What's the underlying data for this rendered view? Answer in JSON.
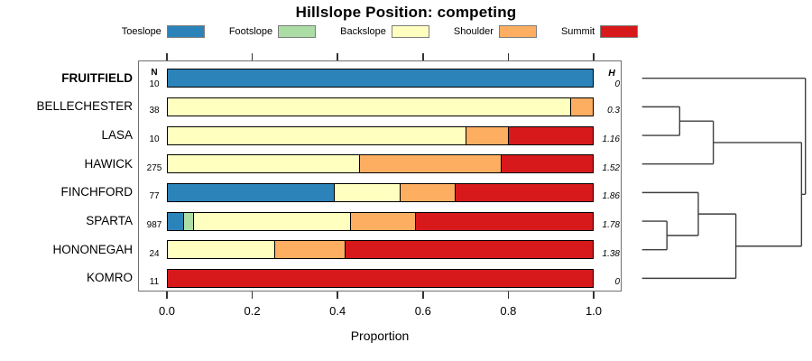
{
  "title": "Hillslope Position: competing",
  "headers": {
    "n": "N",
    "h": "H"
  },
  "axis": {
    "xlabel": "Proportion",
    "tick_labels": [
      "0.0",
      "0.2",
      "0.4",
      "0.6",
      "0.8",
      "1.0"
    ],
    "tick_values": [
      0,
      0.2,
      0.4,
      0.6,
      0.8,
      1.0
    ]
  },
  "chart_data": {
    "type": "bar",
    "subtype": "horizontal-stacked-proportion-with-dendrogram",
    "title": "Hillslope Position: competing",
    "xlabel": "Proportion",
    "xlim": [
      0,
      1
    ],
    "grid": false,
    "legend_position": "top",
    "categories": [
      "Toeslope",
      "Footslope",
      "Backslope",
      "Shoulder",
      "Summit"
    ],
    "palette": {
      "Toeslope": "#2B83BA",
      "Footslope": "#ABDDA4",
      "Backslope": "#FFFFBF",
      "Shoulder": "#FDAE61",
      "Summit": "#D7191C"
    },
    "rows": [
      {
        "name": "FRUITFIELD",
        "bold": true,
        "n": 10,
        "h": "0",
        "segments": [
          {
            "cat": "Toeslope",
            "p": 1.0
          }
        ]
      },
      {
        "name": "BELLECHESTER",
        "bold": false,
        "n": 38,
        "h": "0.3",
        "segments": [
          {
            "cat": "Backslope",
            "p": 0.947
          },
          {
            "cat": "Shoulder",
            "p": 0.053
          }
        ]
      },
      {
        "name": "LASA",
        "bold": false,
        "n": 10,
        "h": "1.16",
        "segments": [
          {
            "cat": "Backslope",
            "p": 0.7
          },
          {
            "cat": "Shoulder",
            "p": 0.1
          },
          {
            "cat": "Summit",
            "p": 0.2
          }
        ]
      },
      {
        "name": "HAWICK",
        "bold": false,
        "n": 275,
        "h": "1.52",
        "segments": [
          {
            "cat": "Backslope",
            "p": 0.45
          },
          {
            "cat": "Shoulder",
            "p": 0.334
          },
          {
            "cat": "Summit",
            "p": 0.216
          }
        ]
      },
      {
        "name": "FINCHFORD",
        "bold": false,
        "n": 77,
        "h": "1.86",
        "segments": [
          {
            "cat": "Toeslope",
            "p": 0.39
          },
          {
            "cat": "Backslope",
            "p": 0.156
          },
          {
            "cat": "Shoulder",
            "p": 0.13
          },
          {
            "cat": "Summit",
            "p": 0.324
          }
        ]
      },
      {
        "name": "SPARTA",
        "bold": false,
        "n": 987,
        "h": "1.78",
        "segments": [
          {
            "cat": "Toeslope",
            "p": 0.037
          },
          {
            "cat": "Footslope",
            "p": 0.022
          },
          {
            "cat": "Backslope",
            "p": 0.37
          },
          {
            "cat": "Shoulder",
            "p": 0.152
          },
          {
            "cat": "Summit",
            "p": 0.419
          }
        ]
      },
      {
        "name": "HONONEGAH",
        "bold": false,
        "n": 24,
        "h": "1.38",
        "segments": [
          {
            "cat": "Backslope",
            "p": 0.25
          },
          {
            "cat": "Shoulder",
            "p": 0.167
          },
          {
            "cat": "Summit",
            "p": 0.583
          }
        ]
      },
      {
        "name": "KOMRO",
        "bold": false,
        "n": 11,
        "h": "0",
        "segments": [
          {
            "cat": "Summit",
            "p": 1.0
          }
        ]
      }
    ],
    "dendrogram": {
      "leaf_order": [
        "FRUITFIELD",
        "BELLECHESTER",
        "LASA",
        "HAWICK",
        "FINCHFORD",
        "SPARTA",
        "HONONEGAH",
        "KOMRO"
      ],
      "merges": [
        {
          "a": 1,
          "b": 2,
          "h": 0.23
        },
        {
          "a": 8,
          "b": 3,
          "h": 0.436
        },
        {
          "a": 5,
          "b": 6,
          "h": 0.152
        },
        {
          "a": 4,
          "b": 10,
          "h": 0.344
        },
        {
          "a": 11,
          "b": 7,
          "h": 0.574
        },
        {
          "a": 9,
          "b": 12,
          "h": 0.976
        },
        {
          "a": 0,
          "b": 13,
          "h": 1.0
        }
      ],
      "line_color": "#3f3f3f"
    }
  }
}
